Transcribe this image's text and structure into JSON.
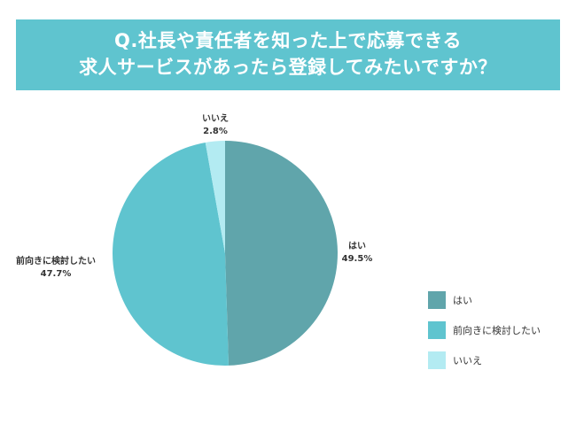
{
  "title": {
    "line1": "Q.社長や責任者を知った上で応募できる",
    "line2": "求人サービスがあったら登録してみたいですか？"
  },
  "chart_data": {
    "type": "pie",
    "slices": [
      {
        "label": "はい",
        "value": 49.5,
        "value_text": "49.5%",
        "color": "#60a5ab"
      },
      {
        "label": "前向きに検討したい",
        "value": 47.7,
        "value_text": "47.7%",
        "color": "#5fc4cf"
      },
      {
        "label": "いいえ",
        "value": 2.8,
        "value_text": "2.8%",
        "color": "#b3ebf2"
      }
    ],
    "legend_position": "right"
  },
  "legend": {
    "items": [
      {
        "label": "はい",
        "color": "#60a5ab"
      },
      {
        "label": "前向きに検討したい",
        "color": "#5fc4cf"
      },
      {
        "label": "いいえ",
        "color": "#b3ebf2"
      }
    ]
  }
}
